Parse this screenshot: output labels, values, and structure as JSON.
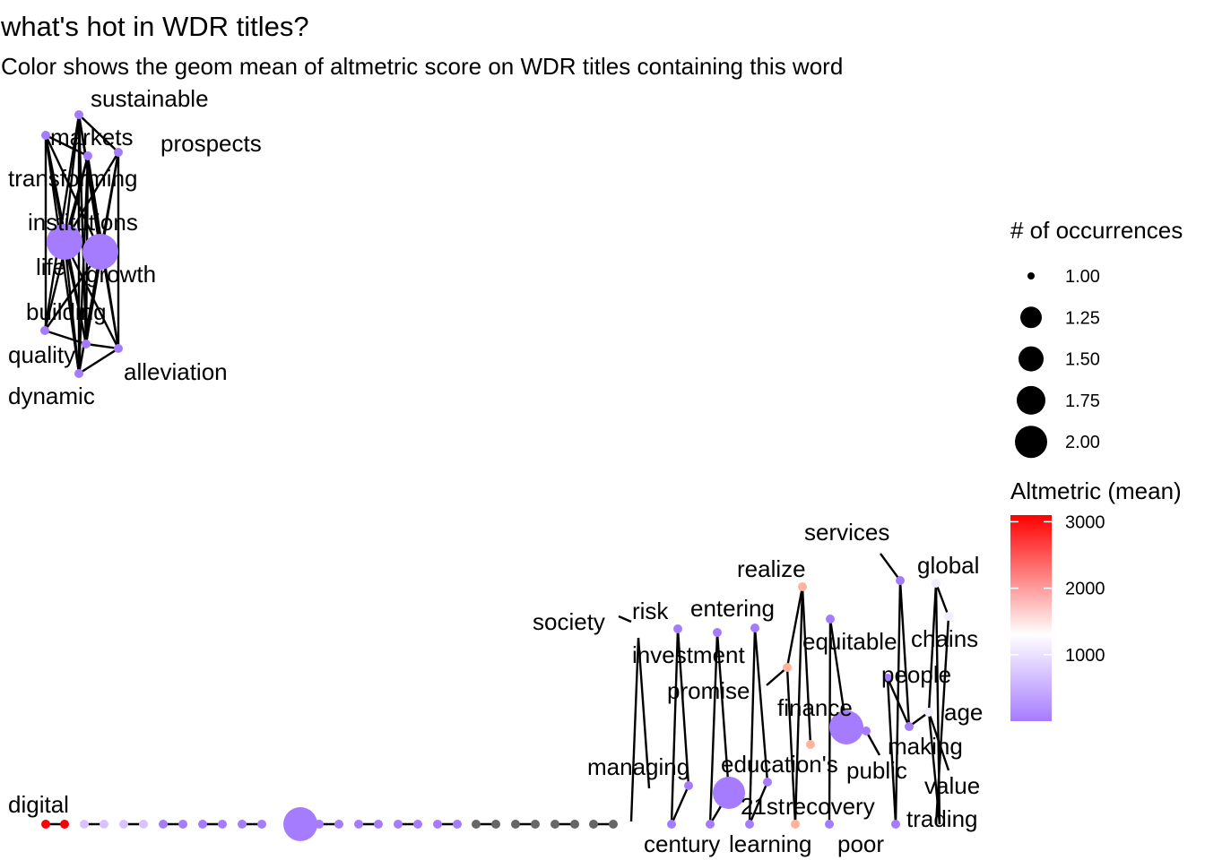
{
  "chart_data": {
    "type": "network",
    "title": "what's hot in WDR titles?",
    "subtitle": "Color shows the geom mean of altmetric score on WDR titles containing this word",
    "size_legend": {
      "title": "# of occurrences",
      "breaks": [
        "1.00",
        "1.25",
        "1.50",
        "1.75",
        "2.00"
      ],
      "values": [
        1,
        1.25,
        1.5,
        1.75,
        2
      ]
    },
    "color_legend": {
      "title": "Altmetric (mean)",
      "breaks": [
        "1000",
        "2000",
        "3000"
      ],
      "values": [
        1000,
        2000,
        3000
      ],
      "low_color": "#a67cff",
      "mid_color": "#ffffff",
      "high_color": "#ff0000",
      "missing_color": "#636363"
    },
    "labels": [
      {
        "text": "sustainable"
      },
      {
        "text": "markets"
      },
      {
        "text": "prospects"
      },
      {
        "text": "transforming"
      },
      {
        "text": "institutions"
      },
      {
        "text": "life"
      },
      {
        "text": "growth"
      },
      {
        "text": "building"
      },
      {
        "text": "quality"
      },
      {
        "text": "alleviation"
      },
      {
        "text": "dynamic"
      },
      {
        "text": "services"
      },
      {
        "text": "global"
      },
      {
        "text": "realize"
      },
      {
        "text": "society"
      },
      {
        "text": "risk"
      },
      {
        "text": "entering"
      },
      {
        "text": "equitable"
      },
      {
        "text": "chains"
      },
      {
        "text": "investment"
      },
      {
        "text": "people"
      },
      {
        "text": "promise"
      },
      {
        "text": "finance"
      },
      {
        "text": "age"
      },
      {
        "text": "making"
      },
      {
        "text": "managing"
      },
      {
        "text": "education's"
      },
      {
        "text": "public"
      },
      {
        "text": "value"
      },
      {
        "text": "digital"
      },
      {
        "text": "21st"
      },
      {
        "text": "recovery"
      },
      {
        "text": "trading"
      },
      {
        "text": "century"
      },
      {
        "text": "learning"
      },
      {
        "text": "poor"
      }
    ]
  }
}
